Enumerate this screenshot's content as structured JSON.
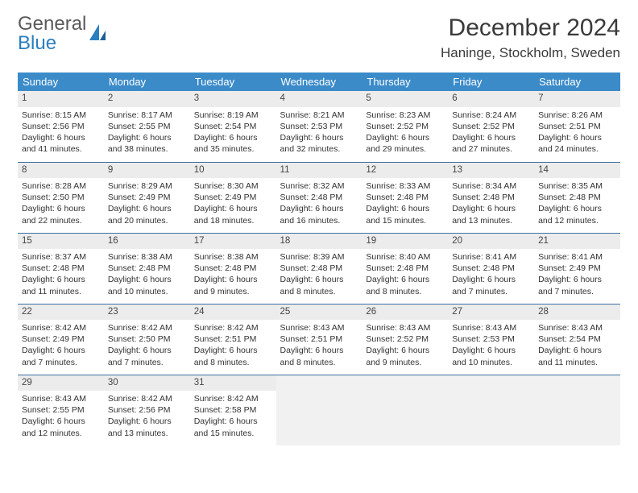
{
  "logo": {
    "line1": "General",
    "line2": "Blue"
  },
  "title": {
    "month": "December 2024",
    "location": "Haninge, Stockholm, Sweden"
  },
  "colors": {
    "header_bg": "#3b8bc9",
    "header_fg": "#ffffff",
    "row_sep": "#3b6fa0",
    "daynum_bg": "#ececec",
    "empty_bg": "#f1f1f1",
    "logo_gray": "#5a5a5a",
    "logo_blue": "#2a7fbf"
  },
  "day_headers": [
    "Sunday",
    "Monday",
    "Tuesday",
    "Wednesday",
    "Thursday",
    "Friday",
    "Saturday"
  ],
  "weeks": [
    [
      {
        "n": "1",
        "sr": "Sunrise: 8:15 AM",
        "ss": "Sunset: 2:56 PM",
        "d1": "Daylight: 6 hours",
        "d2": "and 41 minutes."
      },
      {
        "n": "2",
        "sr": "Sunrise: 8:17 AM",
        "ss": "Sunset: 2:55 PM",
        "d1": "Daylight: 6 hours",
        "d2": "and 38 minutes."
      },
      {
        "n": "3",
        "sr": "Sunrise: 8:19 AM",
        "ss": "Sunset: 2:54 PM",
        "d1": "Daylight: 6 hours",
        "d2": "and 35 minutes."
      },
      {
        "n": "4",
        "sr": "Sunrise: 8:21 AM",
        "ss": "Sunset: 2:53 PM",
        "d1": "Daylight: 6 hours",
        "d2": "and 32 minutes."
      },
      {
        "n": "5",
        "sr": "Sunrise: 8:23 AM",
        "ss": "Sunset: 2:52 PM",
        "d1": "Daylight: 6 hours",
        "d2": "and 29 minutes."
      },
      {
        "n": "6",
        "sr": "Sunrise: 8:24 AM",
        "ss": "Sunset: 2:52 PM",
        "d1": "Daylight: 6 hours",
        "d2": "and 27 minutes."
      },
      {
        "n": "7",
        "sr": "Sunrise: 8:26 AM",
        "ss": "Sunset: 2:51 PM",
        "d1": "Daylight: 6 hours",
        "d2": "and 24 minutes."
      }
    ],
    [
      {
        "n": "8",
        "sr": "Sunrise: 8:28 AM",
        "ss": "Sunset: 2:50 PM",
        "d1": "Daylight: 6 hours",
        "d2": "and 22 minutes."
      },
      {
        "n": "9",
        "sr": "Sunrise: 8:29 AM",
        "ss": "Sunset: 2:49 PM",
        "d1": "Daylight: 6 hours",
        "d2": "and 20 minutes."
      },
      {
        "n": "10",
        "sr": "Sunrise: 8:30 AM",
        "ss": "Sunset: 2:49 PM",
        "d1": "Daylight: 6 hours",
        "d2": "and 18 minutes."
      },
      {
        "n": "11",
        "sr": "Sunrise: 8:32 AM",
        "ss": "Sunset: 2:48 PM",
        "d1": "Daylight: 6 hours",
        "d2": "and 16 minutes."
      },
      {
        "n": "12",
        "sr": "Sunrise: 8:33 AM",
        "ss": "Sunset: 2:48 PM",
        "d1": "Daylight: 6 hours",
        "d2": "and 15 minutes."
      },
      {
        "n": "13",
        "sr": "Sunrise: 8:34 AM",
        "ss": "Sunset: 2:48 PM",
        "d1": "Daylight: 6 hours",
        "d2": "and 13 minutes."
      },
      {
        "n": "14",
        "sr": "Sunrise: 8:35 AM",
        "ss": "Sunset: 2:48 PM",
        "d1": "Daylight: 6 hours",
        "d2": "and 12 minutes."
      }
    ],
    [
      {
        "n": "15",
        "sr": "Sunrise: 8:37 AM",
        "ss": "Sunset: 2:48 PM",
        "d1": "Daylight: 6 hours",
        "d2": "and 11 minutes."
      },
      {
        "n": "16",
        "sr": "Sunrise: 8:38 AM",
        "ss": "Sunset: 2:48 PM",
        "d1": "Daylight: 6 hours",
        "d2": "and 10 minutes."
      },
      {
        "n": "17",
        "sr": "Sunrise: 8:38 AM",
        "ss": "Sunset: 2:48 PM",
        "d1": "Daylight: 6 hours",
        "d2": "and 9 minutes."
      },
      {
        "n": "18",
        "sr": "Sunrise: 8:39 AM",
        "ss": "Sunset: 2:48 PM",
        "d1": "Daylight: 6 hours",
        "d2": "and 8 minutes."
      },
      {
        "n": "19",
        "sr": "Sunrise: 8:40 AM",
        "ss": "Sunset: 2:48 PM",
        "d1": "Daylight: 6 hours",
        "d2": "and 8 minutes."
      },
      {
        "n": "20",
        "sr": "Sunrise: 8:41 AM",
        "ss": "Sunset: 2:48 PM",
        "d1": "Daylight: 6 hours",
        "d2": "and 7 minutes."
      },
      {
        "n": "21",
        "sr": "Sunrise: 8:41 AM",
        "ss": "Sunset: 2:49 PM",
        "d1": "Daylight: 6 hours",
        "d2": "and 7 minutes."
      }
    ],
    [
      {
        "n": "22",
        "sr": "Sunrise: 8:42 AM",
        "ss": "Sunset: 2:49 PM",
        "d1": "Daylight: 6 hours",
        "d2": "and 7 minutes."
      },
      {
        "n": "23",
        "sr": "Sunrise: 8:42 AM",
        "ss": "Sunset: 2:50 PM",
        "d1": "Daylight: 6 hours",
        "d2": "and 7 minutes."
      },
      {
        "n": "24",
        "sr": "Sunrise: 8:42 AM",
        "ss": "Sunset: 2:51 PM",
        "d1": "Daylight: 6 hours",
        "d2": "and 8 minutes."
      },
      {
        "n": "25",
        "sr": "Sunrise: 8:43 AM",
        "ss": "Sunset: 2:51 PM",
        "d1": "Daylight: 6 hours",
        "d2": "and 8 minutes."
      },
      {
        "n": "26",
        "sr": "Sunrise: 8:43 AM",
        "ss": "Sunset: 2:52 PM",
        "d1": "Daylight: 6 hours",
        "d2": "and 9 minutes."
      },
      {
        "n": "27",
        "sr": "Sunrise: 8:43 AM",
        "ss": "Sunset: 2:53 PM",
        "d1": "Daylight: 6 hours",
        "d2": "and 10 minutes."
      },
      {
        "n": "28",
        "sr": "Sunrise: 8:43 AM",
        "ss": "Sunset: 2:54 PM",
        "d1": "Daylight: 6 hours",
        "d2": "and 11 minutes."
      }
    ],
    [
      {
        "n": "29",
        "sr": "Sunrise: 8:43 AM",
        "ss": "Sunset: 2:55 PM",
        "d1": "Daylight: 6 hours",
        "d2": "and 12 minutes."
      },
      {
        "n": "30",
        "sr": "Sunrise: 8:42 AM",
        "ss": "Sunset: 2:56 PM",
        "d1": "Daylight: 6 hours",
        "d2": "and 13 minutes."
      },
      {
        "n": "31",
        "sr": "Sunrise: 8:42 AM",
        "ss": "Sunset: 2:58 PM",
        "d1": "Daylight: 6 hours",
        "d2": "and 15 minutes."
      },
      null,
      null,
      null,
      null
    ]
  ]
}
